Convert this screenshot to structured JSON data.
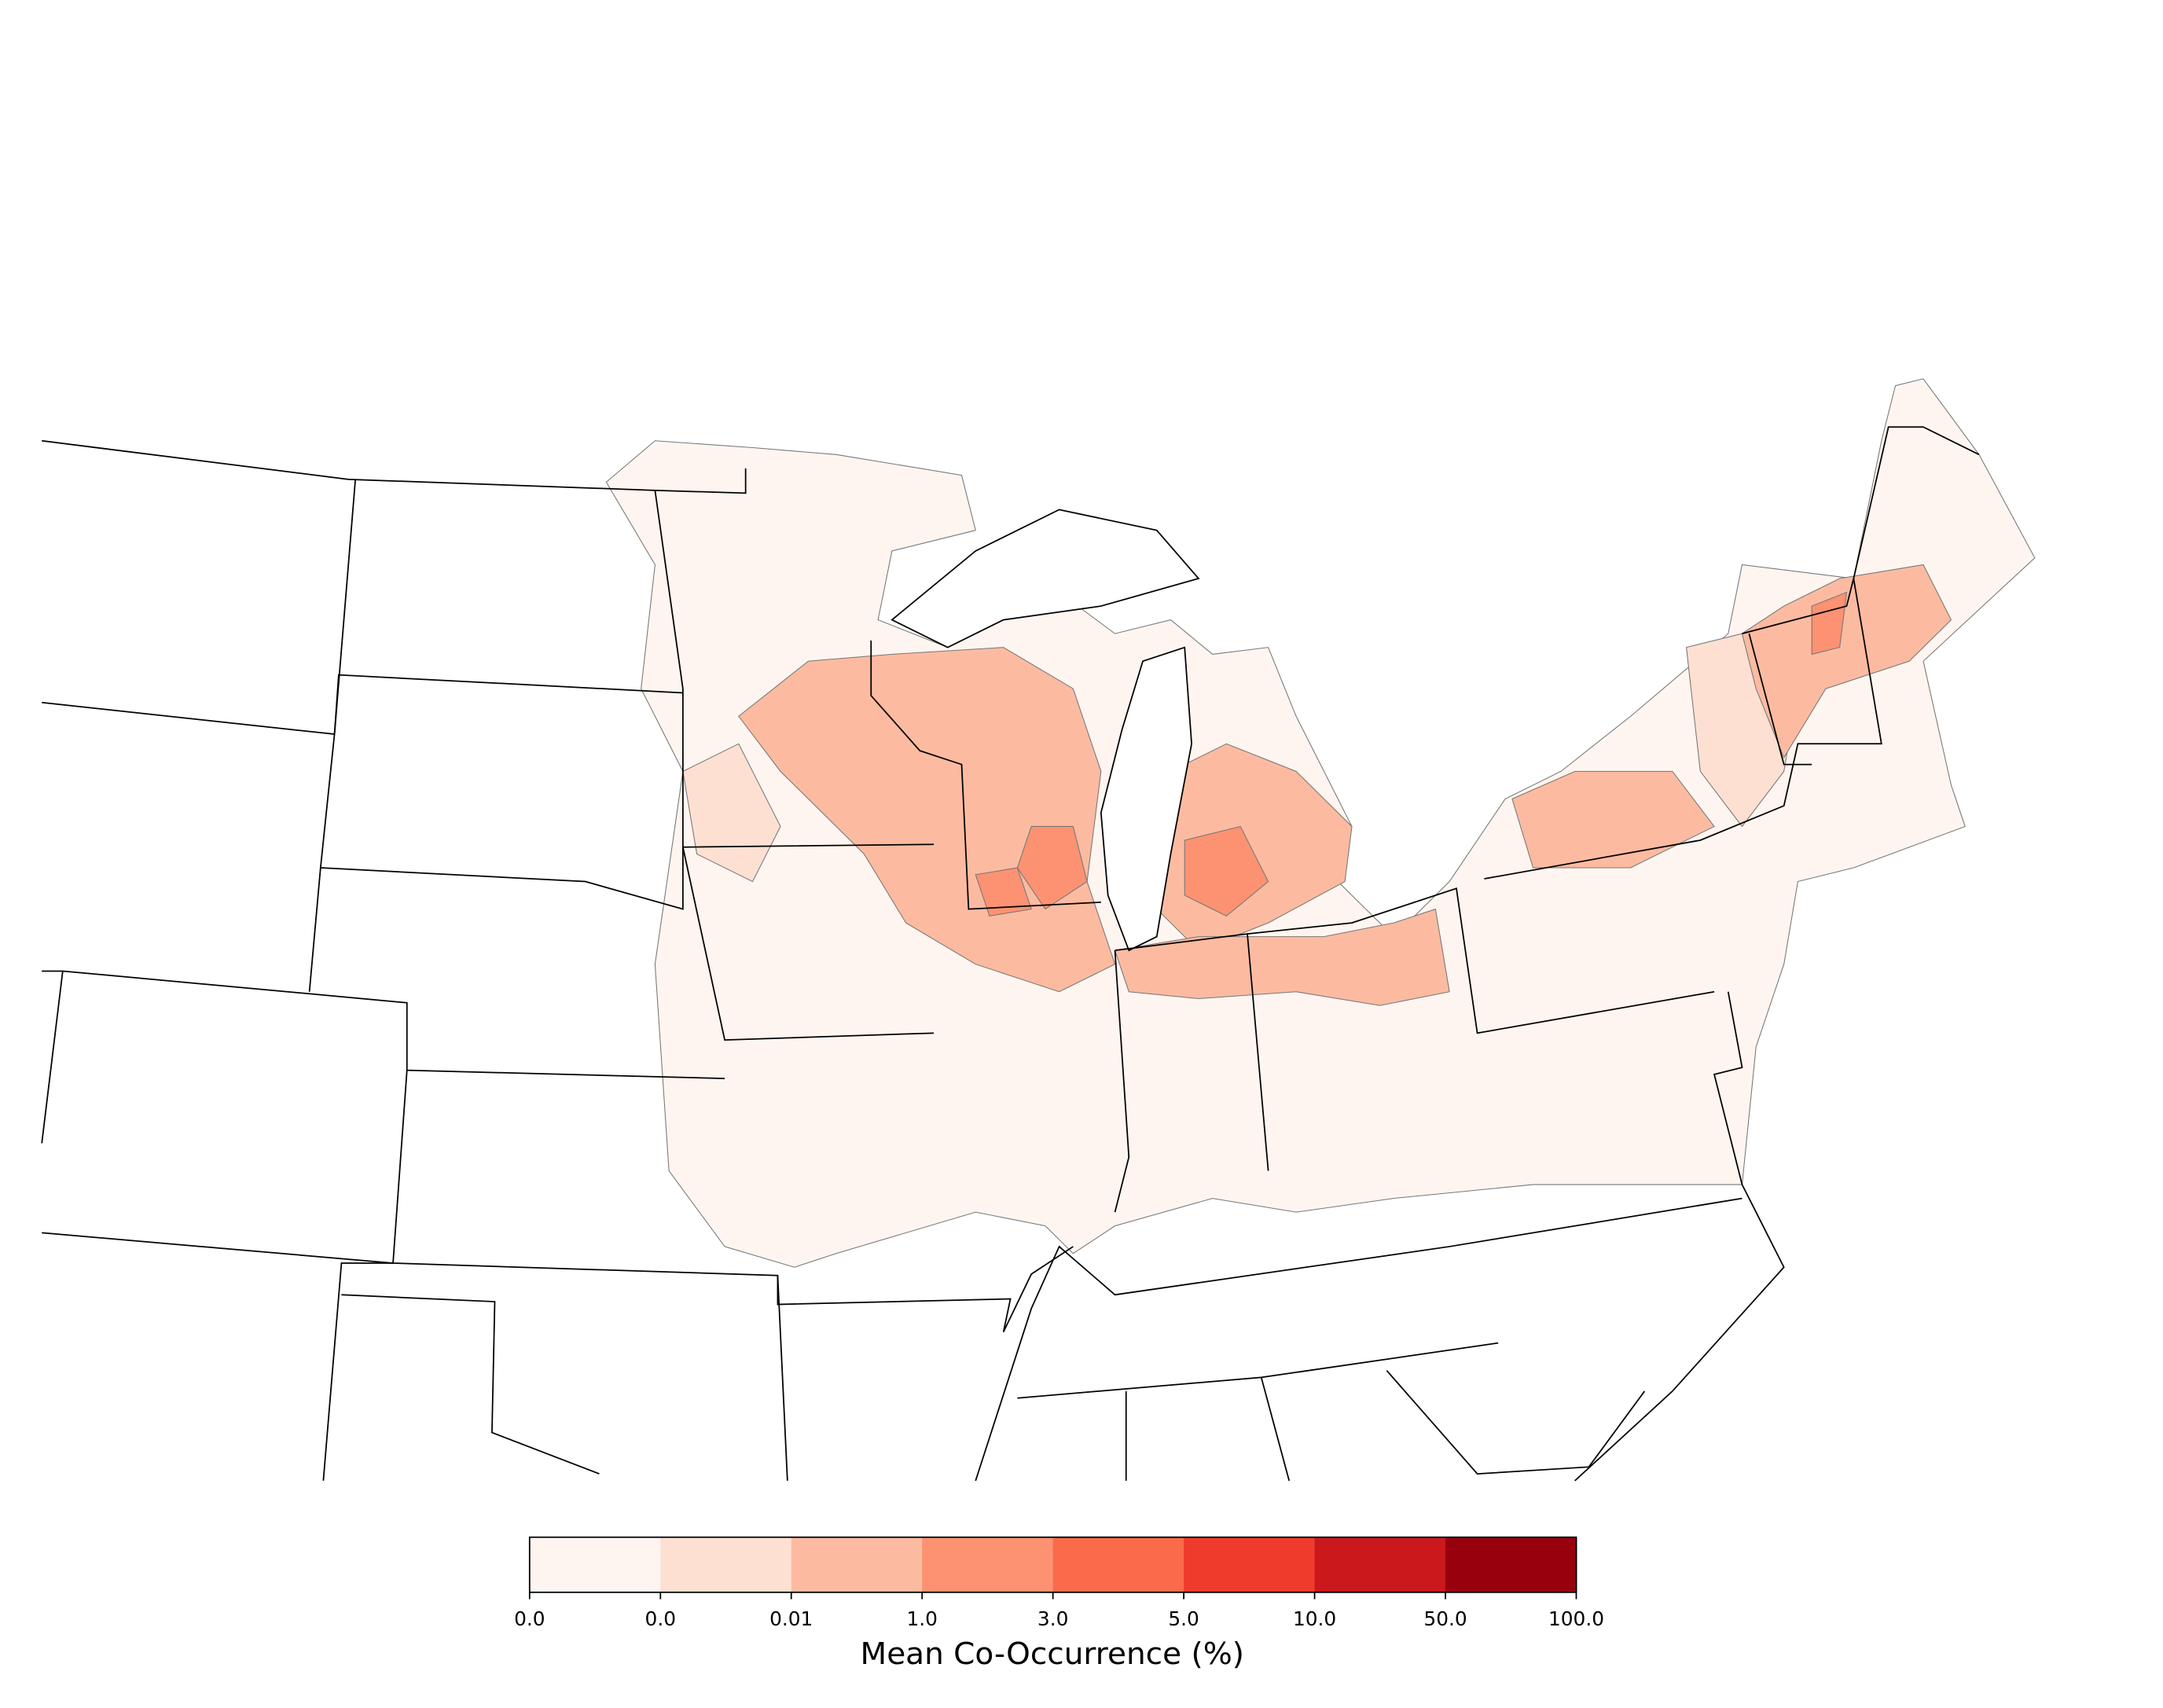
{
  "chart_data": {
    "type": "choropleth",
    "colorbar_label": "Mean Co-Occurrence (%)",
    "colors": [
      "#fff5f0",
      "#fee0d2",
      "#fcbba1",
      "#fc9272",
      "#fb6a4a",
      "#ef3b2c",
      "#cb181d",
      "#99000d"
    ],
    "ticks": [
      {
        "value": 0,
        "label": "0.0"
      },
      {
        "value": 0.001,
        "label": "0.0"
      },
      0.01,
      {
        "value": 1,
        "label": "1.0"
      },
      {
        "value": 3,
        "label": "3.0"
      },
      {
        "value": 5,
        "label": "5.0"
      },
      {
        "value": 10,
        "label": "10.0"
      },
      {
        "value": 50,
        "label": "50.0"
      },
      {
        "value": 100,
        "label": "100.0"
      }
    ]
  }
}
